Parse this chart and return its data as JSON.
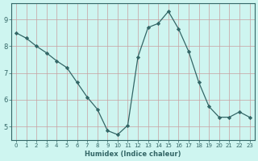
{
  "x": [
    0,
    1,
    2,
    3,
    4,
    5,
    6,
    7,
    8,
    9,
    10,
    11,
    12,
    13,
    14,
    15,
    16,
    17,
    18,
    19,
    20,
    21,
    22,
    23
  ],
  "y": [
    8.5,
    8.3,
    8.0,
    7.75,
    7.45,
    7.2,
    6.65,
    6.1,
    5.65,
    4.85,
    4.7,
    5.05,
    7.6,
    8.7,
    8.85,
    9.3,
    8.65,
    7.8,
    6.65,
    5.75,
    5.35,
    5.35,
    5.55,
    5.35
  ],
  "line_color": "#336666",
  "marker": "D",
  "marker_size": 2.2,
  "bg_color": "#cef5f0",
  "grid_color_vertical": "#c8a0a0",
  "grid_color_horizontal": "#c8a0a0",
  "xlabel": "Humidex (Indice chaleur)",
  "ylim": [
    4.5,
    9.6
  ],
  "xlim": [
    -0.5,
    23.5
  ],
  "yticks": [
    5,
    6,
    7,
    8,
    9
  ],
  "xticks": [
    0,
    1,
    2,
    3,
    4,
    5,
    6,
    7,
    8,
    9,
    10,
    11,
    12,
    13,
    14,
    15,
    16,
    17,
    18,
    19,
    20,
    21,
    22,
    23
  ],
  "tick_color": "#336666",
  "label_color": "#336666",
  "axis_color": "#336666",
  "xlabel_fontsize": 6.0,
  "xlabel_fontweight": "bold",
  "ytick_fontsize": 6.0,
  "xtick_fontsize": 5.0
}
